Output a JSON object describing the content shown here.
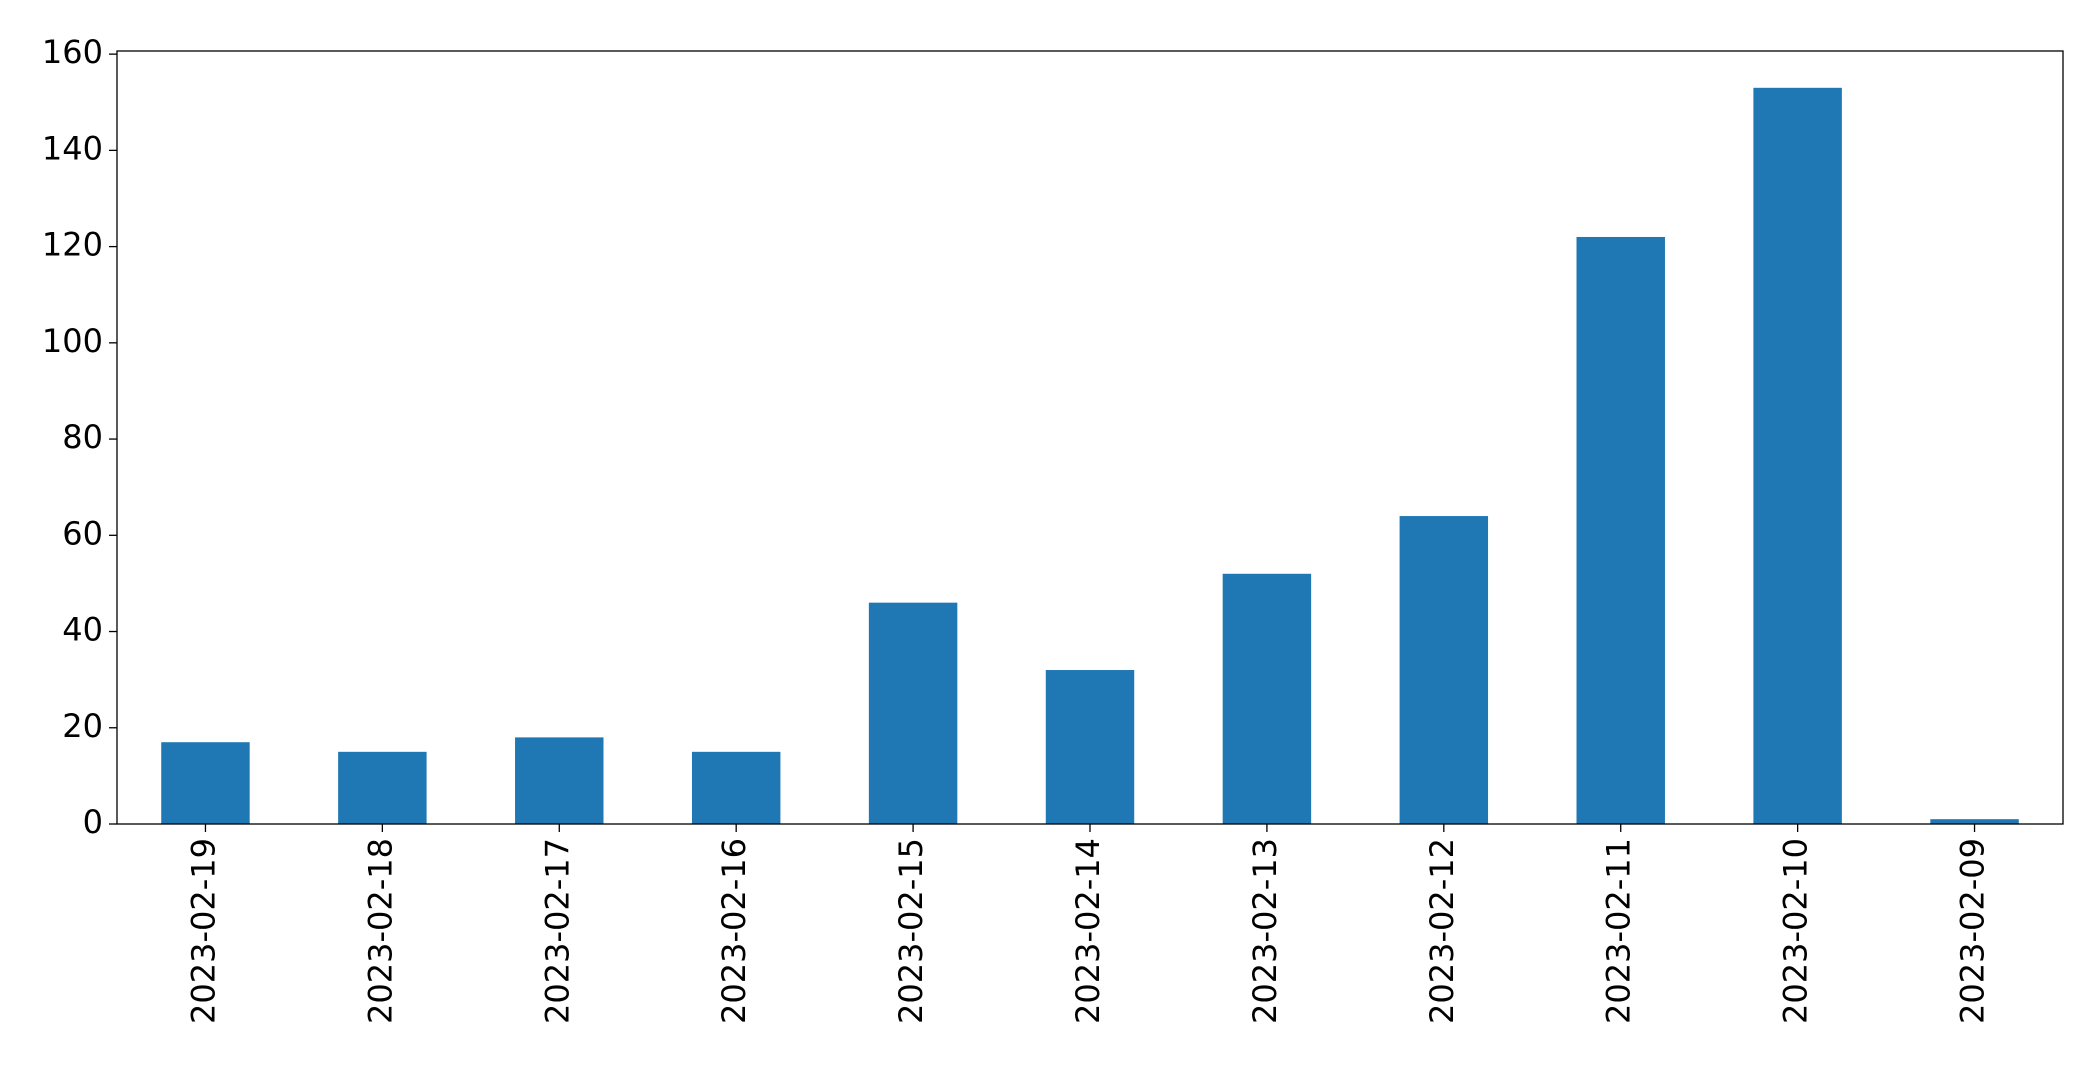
{
  "chart_data": {
    "type": "bar",
    "categories": [
      "2023-02-19",
      "2023-02-18",
      "2023-02-17",
      "2023-02-16",
      "2023-02-15",
      "2023-02-14",
      "2023-02-13",
      "2023-02-12",
      "2023-02-11",
      "2023-02-10",
      "2023-02-09"
    ],
    "values": [
      17,
      15,
      18,
      15,
      46,
      32,
      52,
      64,
      122,
      153,
      1
    ],
    "color": "#1f77b4",
    "ylim": [
      0,
      160.65
    ],
    "yticks": [
      0,
      20,
      40,
      60,
      80,
      100,
      120,
      140,
      160
    ]
  }
}
